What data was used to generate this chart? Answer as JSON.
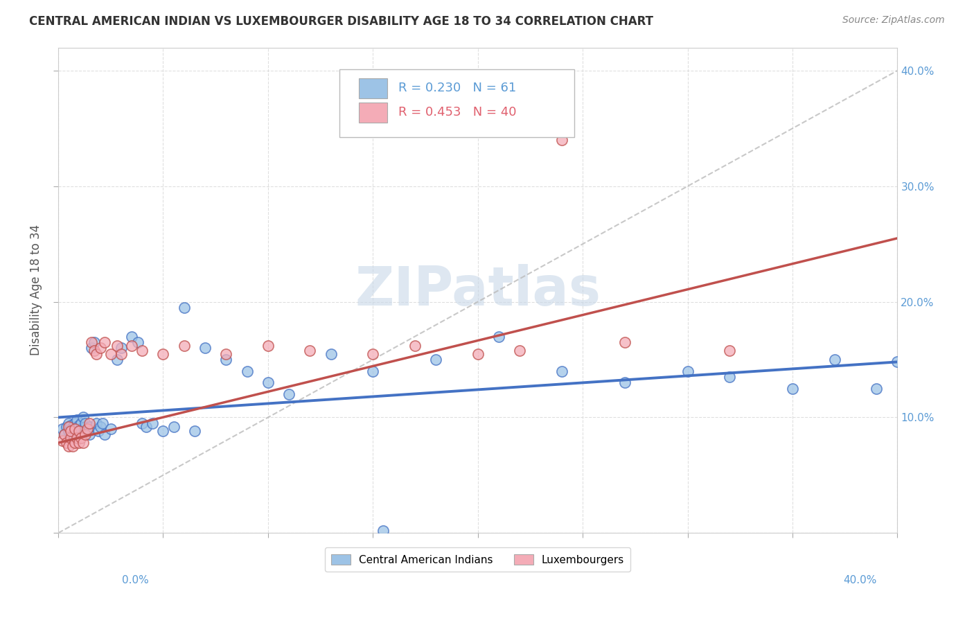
{
  "title": "CENTRAL AMERICAN INDIAN VS LUXEMBOURGER DISABILITY AGE 18 TO 34 CORRELATION CHART",
  "source": "Source: ZipAtlas.com",
  "ylabel": "Disability Age 18 to 34",
  "legend1_r": "0.230",
  "legend1_n": "61",
  "legend2_r": "0.453",
  "legend2_n": "40",
  "blue_line_color": "#4472c4",
  "pink_line_color": "#c0504d",
  "blue_dot_color": "#9dc3e6",
  "pink_dot_color": "#f4acb7",
  "watermark_color": "#c8d8e8",
  "blue_scatter_x": [
    0.002,
    0.003,
    0.004,
    0.005,
    0.005,
    0.006,
    0.006,
    0.007,
    0.007,
    0.008,
    0.008,
    0.009,
    0.009,
    0.01,
    0.01,
    0.011,
    0.011,
    0.012,
    0.012,
    0.013,
    0.013,
    0.014,
    0.015,
    0.015,
    0.016,
    0.017,
    0.018,
    0.019,
    0.02,
    0.021,
    0.022,
    0.025,
    0.028,
    0.03,
    0.035,
    0.038,
    0.04,
    0.042,
    0.045,
    0.05,
    0.055,
    0.06,
    0.065,
    0.07,
    0.08,
    0.09,
    0.1,
    0.11,
    0.13,
    0.15,
    0.18,
    0.21,
    0.24,
    0.27,
    0.3,
    0.32,
    0.35,
    0.37,
    0.39,
    0.4,
    0.155
  ],
  "blue_scatter_y": [
    0.09,
    0.085,
    0.092,
    0.088,
    0.095,
    0.09,
    0.093,
    0.085,
    0.092,
    0.088,
    0.095,
    0.09,
    0.098,
    0.085,
    0.093,
    0.09,
    0.095,
    0.088,
    0.1,
    0.092,
    0.095,
    0.088,
    0.085,
    0.092,
    0.16,
    0.165,
    0.095,
    0.088,
    0.092,
    0.095,
    0.085,
    0.09,
    0.15,
    0.16,
    0.17,
    0.165,
    0.095,
    0.092,
    0.095,
    0.088,
    0.092,
    0.195,
    0.088,
    0.16,
    0.15,
    0.14,
    0.13,
    0.12,
    0.155,
    0.14,
    0.15,
    0.17,
    0.14,
    0.13,
    0.14,
    0.135,
    0.125,
    0.15,
    0.125,
    0.148,
    0.002
  ],
  "pink_scatter_x": [
    0.002,
    0.003,
    0.004,
    0.005,
    0.005,
    0.006,
    0.006,
    0.007,
    0.008,
    0.008,
    0.009,
    0.01,
    0.01,
    0.011,
    0.012,
    0.013,
    0.014,
    0.015,
    0.016,
    0.017,
    0.018,
    0.02,
    0.022,
    0.025,
    0.028,
    0.03,
    0.035,
    0.04,
    0.05,
    0.06,
    0.08,
    0.1,
    0.12,
    0.15,
    0.17,
    0.2,
    0.22,
    0.24,
    0.27,
    0.32
  ],
  "pink_scatter_y": [
    0.08,
    0.085,
    0.078,
    0.092,
    0.075,
    0.082,
    0.088,
    0.075,
    0.09,
    0.078,
    0.082,
    0.078,
    0.088,
    0.082,
    0.078,
    0.085,
    0.09,
    0.095,
    0.165,
    0.158,
    0.155,
    0.16,
    0.165,
    0.155,
    0.162,
    0.155,
    0.162,
    0.158,
    0.155,
    0.162,
    0.155,
    0.162,
    0.158,
    0.155,
    0.162,
    0.155,
    0.158,
    0.34,
    0.165,
    0.158
  ],
  "blue_trend_x0": 0.0,
  "blue_trend_y0": 0.1,
  "blue_trend_x1": 0.4,
  "blue_trend_y1": 0.148,
  "pink_trend_x0": 0.0,
  "pink_trend_y0": 0.078,
  "pink_trend_x1": 0.4,
  "pink_trend_y1": 0.255,
  "diag_color": "#bbbbbb",
  "xlim": [
    0,
    0.4
  ],
  "ylim": [
    0,
    0.42
  ]
}
